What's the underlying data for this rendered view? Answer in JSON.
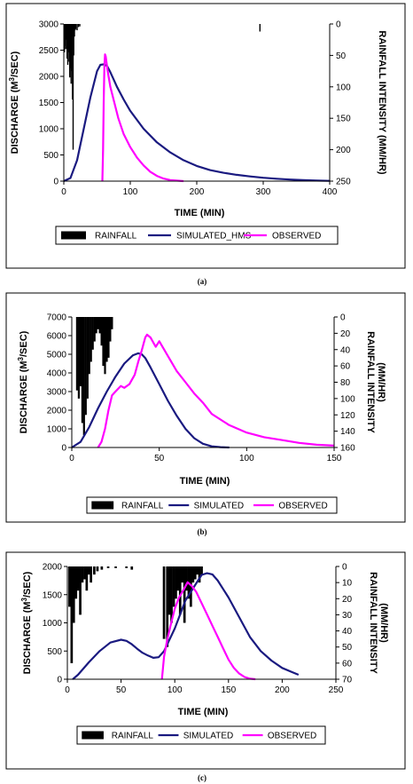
{
  "colors": {
    "rainfall": "#000000",
    "simulated": "#1a1a80",
    "observed": "#ff00ff"
  },
  "chart_data": [
    {
      "type": "line",
      "caption": "(a)",
      "xlabel": "TIME (MIN)",
      "ylabel_pre": "DISCHARGE (M",
      "ylabel_sup": "3",
      "ylabel_post": "/SEC)",
      "y2label_lines": [
        "RAINFALL INTENSITY (MM/HR)"
      ],
      "xlim": [
        0,
        400
      ],
      "xticks": [
        0,
        100,
        200,
        300,
        400
      ],
      "ylim": [
        0,
        3000
      ],
      "yticks": [
        0,
        500,
        1000,
        1500,
        2000,
        2500,
        3000
      ],
      "y2lim": [
        0,
        250
      ],
      "y2ticks": [
        0,
        50,
        100,
        150,
        200,
        250
      ],
      "y2_inverted": true,
      "legend": [
        "RAINFALL",
        "SIMULATED_HMS",
        "OBSERVED"
      ],
      "rainfall": {
        "x": [
          1,
          2,
          3,
          4,
          5,
          6,
          7,
          8,
          9,
          10,
          11,
          12,
          13,
          14,
          15,
          16,
          17,
          18,
          20,
          22,
          24,
          295
        ],
        "values": [
          45,
          35,
          40,
          25,
          55,
          65,
          45,
          60,
          85,
          70,
          95,
          75,
          120,
          200,
          50,
          20,
          10,
          8,
          10,
          5,
          4,
          12
        ]
      },
      "series": [
        {
          "name": "RAINFALL",
          "kind": "bar"
        },
        {
          "name": "SIMULATED_HMS",
          "kind": "line",
          "x": [
            0,
            10,
            20,
            30,
            40,
            50,
            55,
            60,
            65,
            70,
            80,
            90,
            100,
            120,
            140,
            160,
            180,
            200,
            220,
            240,
            260,
            280,
            300,
            320,
            340,
            360,
            380,
            400
          ],
          "values": [
            0,
            60,
            400,
            1000,
            1600,
            2100,
            2220,
            2230,
            2200,
            2080,
            1800,
            1560,
            1340,
            1000,
            740,
            550,
            400,
            290,
            210,
            160,
            120,
            90,
            65,
            45,
            30,
            18,
            10,
            5
          ]
        },
        {
          "name": "OBSERVED",
          "kind": "line",
          "x": [
            58,
            59,
            60,
            61,
            62,
            63,
            66,
            70,
            76,
            82,
            90,
            100,
            110,
            120,
            130,
            140,
            150,
            160,
            180
          ],
          "values": [
            0,
            600,
            1500,
            2200,
            2420,
            2380,
            2100,
            1800,
            1500,
            1200,
            900,
            650,
            450,
            300,
            180,
            100,
            50,
            20,
            0
          ]
        }
      ]
    },
    {
      "type": "line",
      "caption": "(b)",
      "xlabel": "TIME (MIN)",
      "ylabel_pre": "DISCHARGE (M",
      "ylabel_sup": "3",
      "ylabel_post": "/SEC)",
      "y2label_lines": [
        "RAINFALL INTENSITY",
        "(MM/HR)"
      ],
      "xlim": [
        0,
        150
      ],
      "xticks": [
        0,
        50,
        100,
        150
      ],
      "ylim": [
        0,
        7000
      ],
      "yticks": [
        0,
        1000,
        2000,
        3000,
        4000,
        5000,
        6000,
        7000
      ],
      "y2lim": [
        0,
        160
      ],
      "y2ticks": [
        0,
        20,
        40,
        60,
        80,
        100,
        120,
        140,
        160
      ],
      "y2_inverted": true,
      "legend": [
        "RAINFALL",
        "SIMULATED",
        "OBSERVED"
      ],
      "rainfall": {
        "x": [
          3,
          4,
          5,
          6,
          7,
          8,
          9,
          10,
          11,
          12,
          13,
          14,
          15,
          16,
          17,
          18,
          19,
          20,
          21,
          22,
          23
        ],
        "values": [
          90,
          100,
          85,
          130,
          145,
          120,
          100,
          70,
          55,
          40,
          30,
          20,
          15,
          20,
          35,
          60,
          70,
          55,
          50,
          30,
          15
        ]
      },
      "series": [
        {
          "name": "RAINFALL",
          "kind": "bar"
        },
        {
          "name": "SIMULATED",
          "kind": "line",
          "x": [
            0,
            5,
            10,
            15,
            20,
            25,
            30,
            35,
            38,
            40,
            42,
            45,
            50,
            55,
            60,
            65,
            70,
            75,
            80,
            85,
            90
          ],
          "values": [
            0,
            300,
            1100,
            2100,
            3000,
            3800,
            4500,
            4950,
            5050,
            5000,
            4800,
            4300,
            3400,
            2500,
            1700,
            1000,
            500,
            200,
            60,
            20,
            0
          ]
        },
        {
          "name": "OBSERVED",
          "kind": "line",
          "x": [
            15,
            17,
            19,
            21,
            23,
            25,
            28,
            30,
            33,
            36,
            38,
            40,
            42,
            43,
            45,
            48,
            50,
            55,
            60,
            65,
            70,
            75,
            80,
            90,
            100,
            110,
            120,
            130,
            140,
            150
          ],
          "values": [
            0,
            300,
            1000,
            2000,
            2800,
            3000,
            3300,
            3200,
            3400,
            3900,
            4600,
            5200,
            5900,
            6050,
            5900,
            5400,
            5700,
            4900,
            4100,
            3500,
            2900,
            2400,
            1800,
            1200,
            800,
            550,
            400,
            250,
            150,
            100
          ]
        }
      ]
    },
    {
      "type": "line",
      "caption": "(c)",
      "xlabel": "TIME (MIN)",
      "ylabel_pre": "DISCHARGE (M",
      "ylabel_sup": "3",
      "ylabel_post": "/SEC)",
      "y2label_lines": [
        "RAINFALL INTENSITY",
        "(MM/HR)"
      ],
      "xlim": [
        0,
        250
      ],
      "xticks": [
        0,
        50,
        100,
        150,
        200,
        250
      ],
      "ylim": [
        0,
        2000
      ],
      "yticks": [
        0,
        500,
        1000,
        1500,
        2000
      ],
      "y2lim": [
        0,
        70
      ],
      "y2ticks": [
        0,
        10,
        20,
        30,
        40,
        50,
        60,
        70
      ],
      "y2_inverted": true,
      "legend": [
        "RAINFALL",
        "SIMULATED",
        "OBSERVED"
      ],
      "rainfall": {
        "x": [
          2,
          4,
          6,
          8,
          10,
          12,
          14,
          16,
          18,
          20,
          22,
          25,
          28,
          32,
          38,
          45,
          55,
          60,
          90,
          93,
          95,
          97,
          99,
          101,
          103,
          105,
          107,
          109,
          111,
          113,
          115,
          117,
          119,
          121,
          123,
          125
        ],
        "values": [
          25,
          60,
          35,
          20,
          15,
          30,
          10,
          8,
          15,
          5,
          10,
          5,
          3,
          2,
          1,
          1,
          1,
          2,
          45,
          50,
          30,
          35,
          25,
          20,
          15,
          30,
          10,
          35,
          15,
          20,
          25,
          10,
          8,
          5,
          10,
          5
        ]
      },
      "series": [
        {
          "name": "RAINFALL",
          "kind": "bar"
        },
        {
          "name": "SIMULATED",
          "kind": "line",
          "x": [
            5,
            10,
            20,
            30,
            40,
            50,
            55,
            60,
            65,
            70,
            75,
            80,
            85,
            90,
            100,
            110,
            120,
            125,
            130,
            135,
            140,
            150,
            160,
            170,
            180,
            190,
            200,
            210,
            215
          ],
          "values": [
            0,
            80,
            300,
            500,
            650,
            700,
            680,
            620,
            540,
            470,
            420,
            380,
            390,
            500,
            900,
            1400,
            1700,
            1850,
            1880,
            1860,
            1750,
            1450,
            1100,
            750,
            500,
            330,
            200,
            120,
            80
          ]
        },
        {
          "name": "OBSERVED",
          "kind": "line",
          "x": [
            88,
            90,
            93,
            96,
            100,
            104,
            108,
            112,
            116,
            120,
            125,
            130,
            135,
            140,
            145,
            150,
            155,
            160,
            165,
            170,
            175
          ],
          "values": [
            0,
            400,
            700,
            950,
            1250,
            1450,
            1580,
            1720,
            1650,
            1550,
            1350,
            1150,
            950,
            750,
            550,
            350,
            200,
            100,
            40,
            10,
            0
          ]
        }
      ]
    }
  ]
}
